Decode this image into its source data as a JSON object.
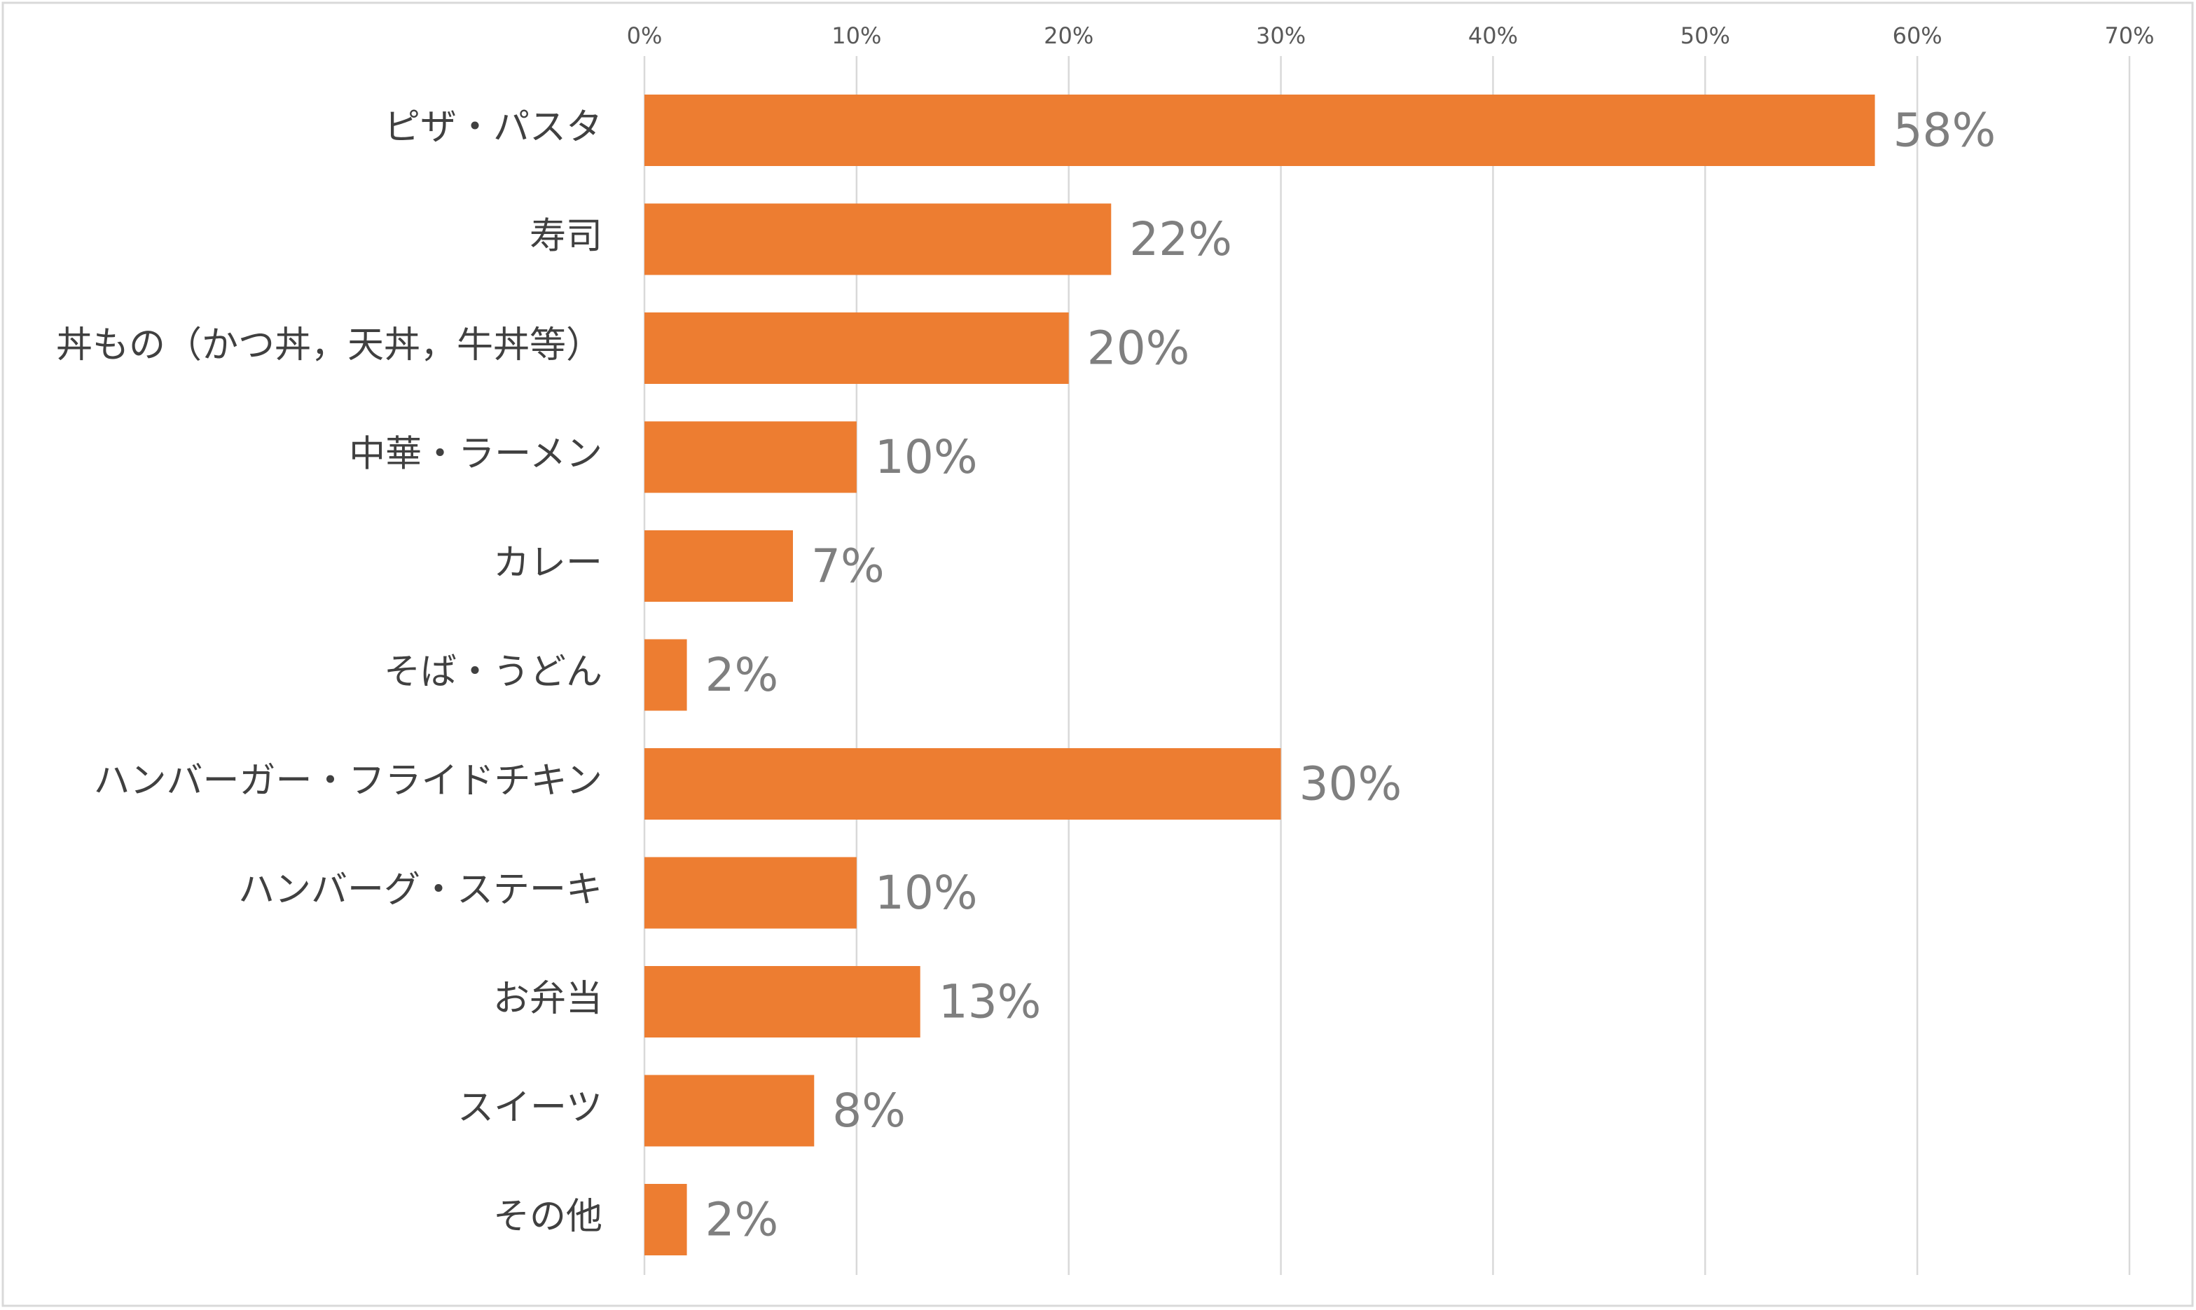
{
  "chart_data": {
    "type": "bar",
    "orientation": "horizontal",
    "title": "",
    "xlabel": "",
    "ylabel": "",
    "xlim": [
      0,
      70
    ],
    "x_ticks": [
      "0%",
      "10%",
      "20%",
      "30%",
      "40%",
      "50%",
      "60%",
      "70%"
    ],
    "grid": true,
    "legend": "none",
    "bar_color": "#ed7d31",
    "categories": [
      "ピザ・パスタ",
      "寿司",
      "丼もの（かつ丼，天丼，牛丼等）",
      "中華・ラーメン",
      "カレー",
      "そば・うどん",
      "ハンバーガー・フライドチキン",
      "ハンバーグ・ステーキ",
      "お弁当",
      "スイーツ",
      "その他"
    ],
    "values": [
      58,
      22,
      20,
      10,
      7,
      2,
      30,
      10,
      13,
      8,
      2
    ],
    "value_labels": [
      "58%",
      "22%",
      "20%",
      "10%",
      "7%",
      "2%",
      "30%",
      "10%",
      "13%",
      "8%",
      "2%"
    ]
  }
}
